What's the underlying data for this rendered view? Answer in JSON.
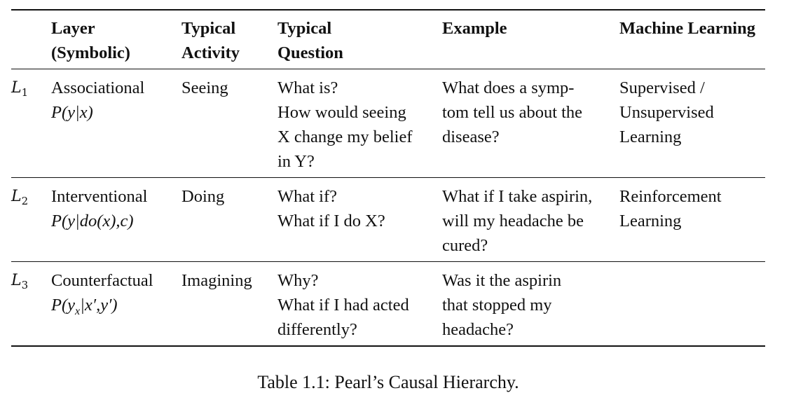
{
  "table": {
    "headers": {
      "layer": [
        "Layer",
        "(Symbolic)"
      ],
      "activity": [
        "Typical",
        "Activity"
      ],
      "question": [
        "Typical",
        "Question"
      ],
      "example": "Example",
      "ml": "Machine Learning"
    },
    "rows": [
      {
        "level_symbol": "L",
        "level_index": "1",
        "layer_name": "Associational",
        "layer_formula": "P(y|x)",
        "activity": "Seeing",
        "question_lines": [
          "What is?",
          "How would seeing",
          "X change my belief",
          "in Y?"
        ],
        "example_lines": [
          "What does a symp-",
          "tom tell us about the",
          "disease?"
        ],
        "ml_lines": [
          "Supervised /",
          "Unsupervised",
          "Learning"
        ]
      },
      {
        "level_symbol": "L",
        "level_index": "2",
        "layer_name": "Interventional",
        "layer_formula": "P(y|do(x),c)",
        "activity": "Doing",
        "question_lines": [
          "What if?",
          "What if I do X?"
        ],
        "example_lines": [
          "What if I take aspirin,",
          "will my headache be",
          "cured?"
        ],
        "ml_lines": [
          "Reinforcement",
          "Learning"
        ]
      },
      {
        "level_symbol": "L",
        "level_index": "3",
        "layer_name": "Counterfactual",
        "layer_formula_main": "P(y",
        "layer_formula_sub": "x",
        "layer_formula_rest": "|x′,y′)",
        "activity": "Imagining",
        "question_lines": [
          "Why?",
          "What if I had acted",
          "differently?"
        ],
        "example_lines": [
          "Was it the aspirin",
          "that stopped my",
          "headache?"
        ],
        "ml_lines": []
      }
    ]
  },
  "caption": "Table 1.1: Pearl’s Causal Hierarchy."
}
